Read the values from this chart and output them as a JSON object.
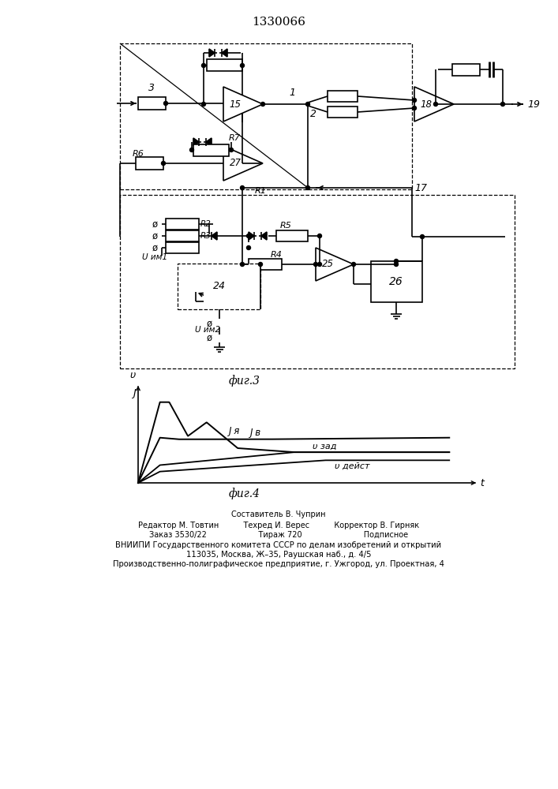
{
  "title": "1330066",
  "fig3_label": "фиг.3",
  "fig4_label": "фиг.4",
  "bg_color": "#ffffff",
  "line_color": "#000000",
  "footer_lines": [
    "Составитель В. Чуприн",
    "Редактор М. Товтин        Техред И. Верес        Корректор В. Гирняк",
    "Заказ 3530/22                   Тираж 720                        Подписное",
    "ВНИИПИ Государственного комитета СССР по делам изобретений и открытий",
    "113035, Москва, Ж–35, Раушская наб., д. 4/5",
    "Производственно-полиграфическое предприятие, г. Ужгород, ул. Проектная, 4"
  ]
}
